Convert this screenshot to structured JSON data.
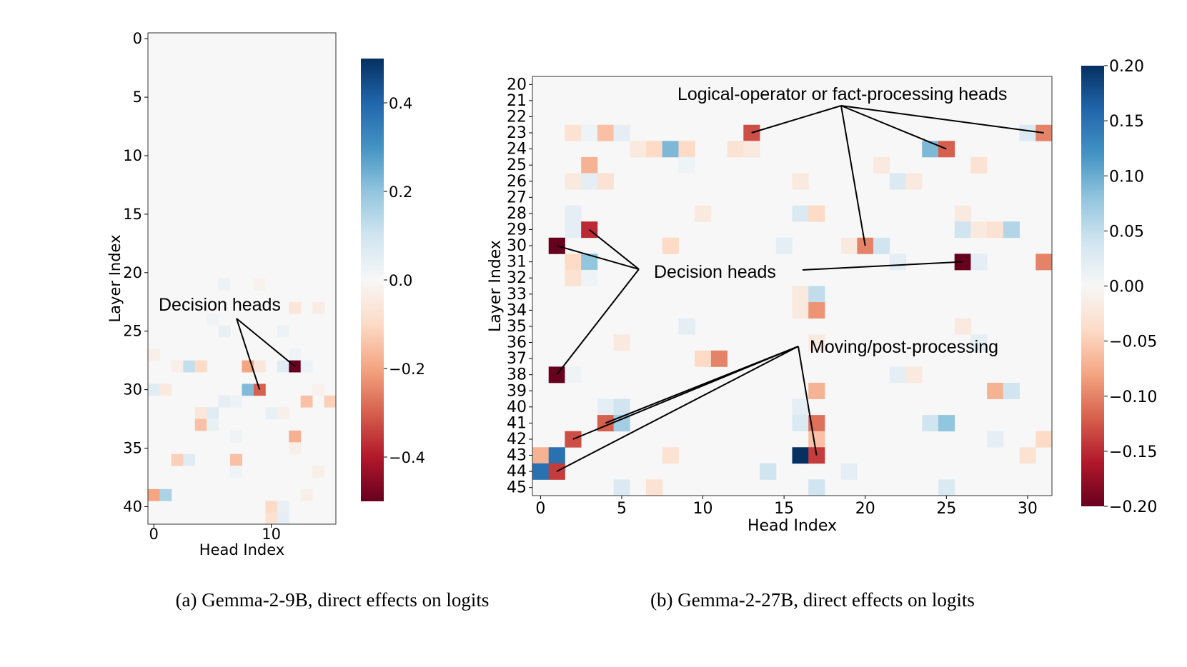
{
  "chart_data": [
    {
      "id": "a",
      "type": "heatmap",
      "caption": "(a) Gemma-2-9B, direct effects on logits",
      "xlabel": "Head Index",
      "ylabel": "Layer Index",
      "n_heads": 16,
      "n_layers": 42,
      "layer_start": 0,
      "x_ticks": [
        0,
        10
      ],
      "y_ticks": [
        0,
        5,
        10,
        15,
        20,
        25,
        30,
        35,
        40
      ],
      "colorbar": {
        "min": -0.5,
        "max": 0.5,
        "ticks": [
          0.4,
          0.2,
          0.0,
          -0.2,
          -0.4
        ],
        "tick_labels": [
          "0.4",
          "0.2",
          "0.0",
          "−0.2",
          "−0.4"
        ]
      },
      "background_value": 0.0,
      "cells": [
        {
          "layer": 21,
          "head": 6,
          "value": 0.03
        },
        {
          "layer": 21,
          "head": 9,
          "value": -0.02
        },
        {
          "layer": 23,
          "head": 12,
          "value": -0.06
        },
        {
          "layer": 23,
          "head": 14,
          "value": -0.04
        },
        {
          "layer": 24,
          "head": 5,
          "value": 0.02
        },
        {
          "layer": 25,
          "head": 6,
          "value": 0.04
        },
        {
          "layer": 25,
          "head": 11,
          "value": 0.03
        },
        {
          "layer": 27,
          "head": 0,
          "value": -0.03
        },
        {
          "layer": 27,
          "head": 12,
          "value": 0.02
        },
        {
          "layer": 28,
          "head": 2,
          "value": -0.03
        },
        {
          "layer": 28,
          "head": 3,
          "value": 0.12
        },
        {
          "layer": 28,
          "head": 4,
          "value": -0.1
        },
        {
          "layer": 28,
          "head": 8,
          "value": -0.2
        },
        {
          "layer": 28,
          "head": 9,
          "value": -0.06
        },
        {
          "layer": 28,
          "head": 11,
          "value": 0.06
        },
        {
          "layer": 28,
          "head": 12,
          "value": -0.5
        },
        {
          "layer": 28,
          "head": 13,
          "value": 0.03
        },
        {
          "layer": 30,
          "head": 0,
          "value": 0.06
        },
        {
          "layer": 30,
          "head": 1,
          "value": -0.05
        },
        {
          "layer": 30,
          "head": 8,
          "value": 0.22
        },
        {
          "layer": 30,
          "head": 9,
          "value": -0.3
        },
        {
          "layer": 30,
          "head": 14,
          "value": -0.02
        },
        {
          "layer": 31,
          "head": 6,
          "value": 0.05
        },
        {
          "layer": 31,
          "head": 7,
          "value": 0.03
        },
        {
          "layer": 31,
          "head": 13,
          "value": -0.15
        },
        {
          "layer": 31,
          "head": 15,
          "value": -0.12
        },
        {
          "layer": 32,
          "head": 4,
          "value": -0.06
        },
        {
          "layer": 32,
          "head": 5,
          "value": 0.06
        },
        {
          "layer": 32,
          "head": 10,
          "value": 0.04
        },
        {
          "layer": 32,
          "head": 11,
          "value": -0.03
        },
        {
          "layer": 33,
          "head": 4,
          "value": -0.15
        },
        {
          "layer": 33,
          "head": 5,
          "value": 0.04
        },
        {
          "layer": 34,
          "head": 7,
          "value": 0.02
        },
        {
          "layer": 34,
          "head": 12,
          "value": -0.18
        },
        {
          "layer": 35,
          "head": 12,
          "value": -0.03
        },
        {
          "layer": 36,
          "head": 2,
          "value": -0.12
        },
        {
          "layer": 36,
          "head": 3,
          "value": 0.06
        },
        {
          "layer": 36,
          "head": 7,
          "value": -0.15
        },
        {
          "layer": 37,
          "head": 7,
          "value": 0.02
        },
        {
          "layer": 37,
          "head": 14,
          "value": -0.03
        },
        {
          "layer": 39,
          "head": 0,
          "value": -0.2
        },
        {
          "layer": 39,
          "head": 1,
          "value": 0.16
        },
        {
          "layer": 39,
          "head": 13,
          "value": -0.03
        },
        {
          "layer": 40,
          "head": 10,
          "value": -0.1
        },
        {
          "layer": 40,
          "head": 11,
          "value": 0.04
        },
        {
          "layer": 41,
          "head": 10,
          "value": -0.08
        },
        {
          "layer": 41,
          "head": 11,
          "value": 0.05
        }
      ],
      "annotations": [
        {
          "text": "Decision heads",
          "targets": [
            {
              "layer": 28,
              "head": 12
            },
            {
              "layer": 30,
              "head": 9
            }
          ]
        }
      ]
    },
    {
      "id": "b",
      "type": "heatmap",
      "caption": "(b) Gemma-2-27B, direct effects on logits",
      "xlabel": "Head Index",
      "ylabel": "Layer Index",
      "n_heads": 32,
      "n_layers": 26,
      "layer_start": 20,
      "x_ticks": [
        0,
        5,
        10,
        15,
        20,
        25,
        30
      ],
      "y_ticks": [
        20,
        21,
        22,
        23,
        24,
        25,
        26,
        27,
        28,
        29,
        30,
        31,
        32,
        33,
        34,
        35,
        36,
        37,
        38,
        39,
        40,
        41,
        42,
        43,
        44,
        45
      ],
      "colorbar": {
        "min": -0.2,
        "max": 0.2,
        "ticks": [
          0.2,
          0.15,
          0.1,
          0.05,
          0.0,
          -0.05,
          -0.1,
          -0.15,
          -0.2
        ],
        "tick_labels": [
          "0.20",
          "0.15",
          "0.10",
          "0.05",
          "0.00",
          "−0.05",
          "−0.10",
          "−0.15",
          "−0.20"
        ]
      },
      "background_value": 0.0,
      "cells": [
        {
          "layer": 23,
          "head": 2,
          "value": -0.03
        },
        {
          "layer": 23,
          "head": 3,
          "value": 0.01
        },
        {
          "layer": 23,
          "head": 4,
          "value": -0.06
        },
        {
          "layer": 23,
          "head": 5,
          "value": 0.02
        },
        {
          "layer": 23,
          "head": 13,
          "value": -0.13
        },
        {
          "layer": 23,
          "head": 30,
          "value": 0.03
        },
        {
          "layer": 23,
          "head": 31,
          "value": -0.1
        },
        {
          "layer": 24,
          "head": 6,
          "value": -0.02
        },
        {
          "layer": 24,
          "head": 7,
          "value": -0.04
        },
        {
          "layer": 24,
          "head": 8,
          "value": 0.09
        },
        {
          "layer": 24,
          "head": 9,
          "value": -0.04
        },
        {
          "layer": 24,
          "head": 12,
          "value": -0.03
        },
        {
          "layer": 24,
          "head": 13,
          "value": -0.02
        },
        {
          "layer": 24,
          "head": 24,
          "value": 0.09
        },
        {
          "layer": 24,
          "head": 25,
          "value": -0.12
        },
        {
          "layer": 25,
          "head": 3,
          "value": -0.07
        },
        {
          "layer": 25,
          "head": 9,
          "value": 0.01
        },
        {
          "layer": 25,
          "head": 21,
          "value": -0.02
        },
        {
          "layer": 25,
          "head": 27,
          "value": -0.03
        },
        {
          "layer": 26,
          "head": 2,
          "value": -0.02
        },
        {
          "layer": 26,
          "head": 3,
          "value": 0.02
        },
        {
          "layer": 26,
          "head": 4,
          "value": -0.03
        },
        {
          "layer": 26,
          "head": 16,
          "value": -0.02
        },
        {
          "layer": 26,
          "head": 22,
          "value": 0.03
        },
        {
          "layer": 26,
          "head": 23,
          "value": -0.02
        },
        {
          "layer": 28,
          "head": 2,
          "value": 0.02
        },
        {
          "layer": 28,
          "head": 10,
          "value": -0.02
        },
        {
          "layer": 28,
          "head": 16,
          "value": 0.03
        },
        {
          "layer": 28,
          "head": 17,
          "value": -0.04
        },
        {
          "layer": 28,
          "head": 26,
          "value": -0.02
        },
        {
          "layer": 29,
          "head": 2,
          "value": 0.02
        },
        {
          "layer": 29,
          "head": 3,
          "value": -0.15
        },
        {
          "layer": 29,
          "head": 26,
          "value": 0.04
        },
        {
          "layer": 29,
          "head": 27,
          "value": -0.02
        },
        {
          "layer": 29,
          "head": 28,
          "value": -0.03
        },
        {
          "layer": 29,
          "head": 29,
          "value": 0.06
        },
        {
          "layer": 30,
          "head": 1,
          "value": -0.2
        },
        {
          "layer": 30,
          "head": 8,
          "value": -0.04
        },
        {
          "layer": 30,
          "head": 15,
          "value": 0.02
        },
        {
          "layer": 30,
          "head": 19,
          "value": -0.02
        },
        {
          "layer": 30,
          "head": 20,
          "value": -0.1
        },
        {
          "layer": 30,
          "head": 21,
          "value": 0.04
        },
        {
          "layer": 31,
          "head": 2,
          "value": -0.04
        },
        {
          "layer": 31,
          "head": 3,
          "value": 0.08
        },
        {
          "layer": 31,
          "head": 22,
          "value": 0.02
        },
        {
          "layer": 31,
          "head": 26,
          "value": -0.2
        },
        {
          "layer": 31,
          "head": 27,
          "value": 0.02
        },
        {
          "layer": 31,
          "head": 31,
          "value": -0.1
        },
        {
          "layer": 32,
          "head": 2,
          "value": -0.03
        },
        {
          "layer": 32,
          "head": 3,
          "value": 0.01
        },
        {
          "layer": 33,
          "head": 16,
          "value": -0.02
        },
        {
          "layer": 33,
          "head": 17,
          "value": 0.05
        },
        {
          "layer": 34,
          "head": 16,
          "value": -0.02
        },
        {
          "layer": 34,
          "head": 17,
          "value": -0.09
        },
        {
          "layer": 35,
          "head": 9,
          "value": 0.02
        },
        {
          "layer": 35,
          "head": 26,
          "value": -0.02
        },
        {
          "layer": 36,
          "head": 5,
          "value": -0.02
        },
        {
          "layer": 36,
          "head": 17,
          "value": -0.02
        },
        {
          "layer": 36,
          "head": 27,
          "value": 0.02
        },
        {
          "layer": 37,
          "head": 10,
          "value": -0.04
        },
        {
          "layer": 37,
          "head": 11,
          "value": -0.1
        },
        {
          "layer": 38,
          "head": 1,
          "value": -0.2
        },
        {
          "layer": 38,
          "head": 2,
          "value": 0.01
        },
        {
          "layer": 38,
          "head": 22,
          "value": 0.02
        },
        {
          "layer": 38,
          "head": 23,
          "value": -0.02
        },
        {
          "layer": 39,
          "head": 17,
          "value": -0.07
        },
        {
          "layer": 39,
          "head": 28,
          "value": -0.07
        },
        {
          "layer": 39,
          "head": 29,
          "value": 0.04
        },
        {
          "layer": 40,
          "head": 4,
          "value": 0.02
        },
        {
          "layer": 40,
          "head": 5,
          "value": 0.04
        },
        {
          "layer": 40,
          "head": 16,
          "value": 0.02
        },
        {
          "layer": 41,
          "head": 4,
          "value": -0.12
        },
        {
          "layer": 41,
          "head": 5,
          "value": 0.07
        },
        {
          "layer": 41,
          "head": 16,
          "value": 0.03
        },
        {
          "layer": 41,
          "head": 17,
          "value": -0.11
        },
        {
          "layer": 41,
          "head": 24,
          "value": 0.04
        },
        {
          "layer": 41,
          "head": 25,
          "value": 0.08
        },
        {
          "layer": 42,
          "head": 2,
          "value": -0.13
        },
        {
          "layer": 42,
          "head": 17,
          "value": -0.06
        },
        {
          "layer": 42,
          "head": 28,
          "value": 0.02
        },
        {
          "layer": 42,
          "head": 31,
          "value": -0.04
        },
        {
          "layer": 43,
          "head": 0,
          "value": -0.07
        },
        {
          "layer": 43,
          "head": 1,
          "value": 0.15
        },
        {
          "layer": 43,
          "head": 8,
          "value": -0.03
        },
        {
          "layer": 43,
          "head": 16,
          "value": 0.2
        },
        {
          "layer": 43,
          "head": 17,
          "value": -0.14
        },
        {
          "layer": 43,
          "head": 30,
          "value": -0.03
        },
        {
          "layer": 44,
          "head": 0,
          "value": 0.15
        },
        {
          "layer": 44,
          "head": 1,
          "value": -0.14
        },
        {
          "layer": 44,
          "head": 14,
          "value": 0.04
        },
        {
          "layer": 44,
          "head": 19,
          "value": 0.02
        },
        {
          "layer": 45,
          "head": 5,
          "value": 0.03
        },
        {
          "layer": 45,
          "head": 7,
          "value": -0.03
        },
        {
          "layer": 45,
          "head": 17,
          "value": 0.04
        },
        {
          "layer": 45,
          "head": 25,
          "value": 0.03
        }
      ],
      "annotations": [
        {
          "text": "Logical-operator or fact-processing heads",
          "targets": [
            {
              "layer": 23,
              "head": 13
            },
            {
              "layer": 24,
              "head": 25
            },
            {
              "layer": 23,
              "head": 31
            },
            {
              "layer": 30,
              "head": 20
            }
          ]
        },
        {
          "text": "Decision heads",
          "targets": [
            {
              "layer": 29,
              "head": 3
            },
            {
              "layer": 30,
              "head": 1
            },
            {
              "layer": 38,
              "head": 1
            },
            {
              "layer": 31,
              "head": 26
            }
          ]
        },
        {
          "text": "Moving/post-processing",
          "targets": [
            {
              "layer": 41,
              "head": 4
            },
            {
              "layer": 42,
              "head": 2
            },
            {
              "layer": 44,
              "head": 1
            },
            {
              "layer": 43,
              "head": 17
            }
          ]
        }
      ]
    }
  ]
}
